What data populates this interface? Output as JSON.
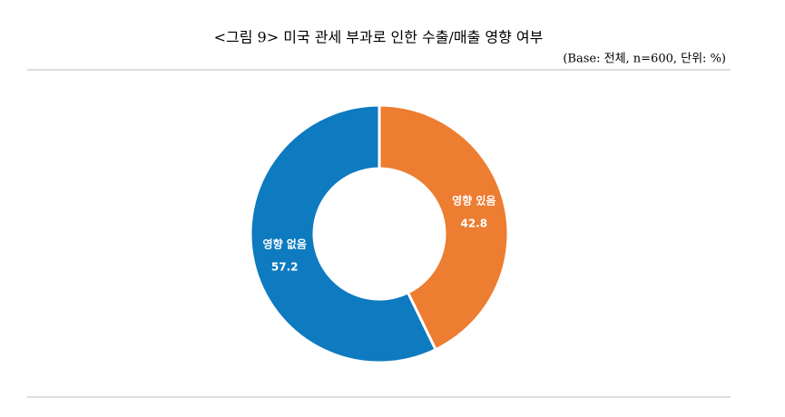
{
  "chart_data": {
    "type": "donut",
    "title": "<그림 9> 미국 관세 부과로 인한 수출/매출 영향 여부",
    "subtitle": "(Base: 전체, n=600, 단위: %)",
    "categories": [
      "영향 있음",
      "영향 없음"
    ],
    "values": [
      42.8,
      57.2
    ],
    "colors": [
      "#ED7D31",
      "#0E7AC0"
    ]
  }
}
